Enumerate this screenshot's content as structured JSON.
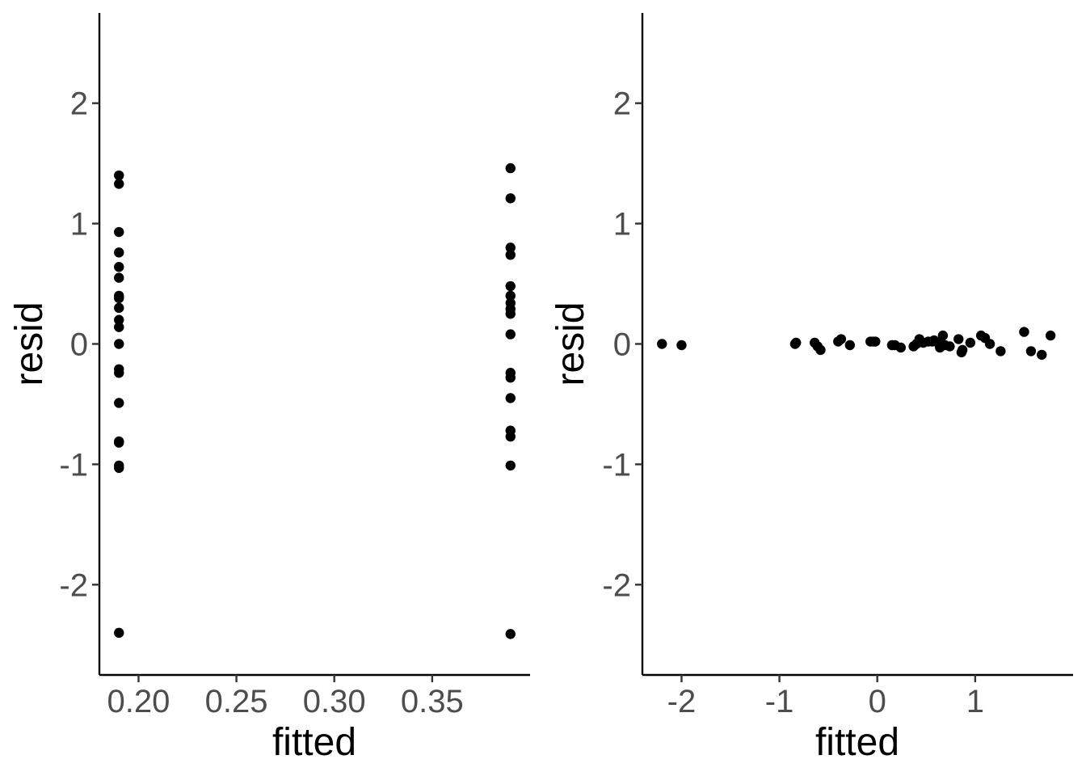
{
  "chart_data": [
    {
      "type": "scatter",
      "title": "",
      "xlabel": "fitted",
      "ylabel": "resid",
      "xlim": [
        0.18,
        0.4
      ],
      "ylim": [
        -2.75,
        2.75
      ],
      "grid": false,
      "x_ticks": [
        0.2,
        0.25,
        0.3,
        0.35
      ],
      "x_tick_labels": [
        "0.20",
        "0.25",
        "0.30",
        "0.35"
      ],
      "y_ticks": [
        -2,
        -1,
        0,
        1,
        2
      ],
      "y_tick_labels": [
        "-2",
        "-1",
        "0",
        "1",
        "2"
      ],
      "points": [
        {
          "x": 0.19,
          "y": 1.4
        },
        {
          "x": 0.19,
          "y": 1.33
        },
        {
          "x": 0.19,
          "y": 0.93
        },
        {
          "x": 0.19,
          "y": 0.76
        },
        {
          "x": 0.19,
          "y": 0.64
        },
        {
          "x": 0.19,
          "y": 0.55
        },
        {
          "x": 0.19,
          "y": 0.4
        },
        {
          "x": 0.19,
          "y": 0.38
        },
        {
          "x": 0.19,
          "y": 0.3
        },
        {
          "x": 0.19,
          "y": 0.2
        },
        {
          "x": 0.19,
          "y": 0.14
        },
        {
          "x": 0.19,
          "y": 0.0
        },
        {
          "x": 0.19,
          "y": -0.21
        },
        {
          "x": 0.19,
          "y": -0.24
        },
        {
          "x": 0.19,
          "y": -0.49
        },
        {
          "x": 0.19,
          "y": -0.81
        },
        {
          "x": 0.19,
          "y": -0.82
        },
        {
          "x": 0.19,
          "y": -1.01
        },
        {
          "x": 0.19,
          "y": -1.03
        },
        {
          "x": 0.19,
          "y": -2.4
        },
        {
          "x": 0.39,
          "y": 1.46
        },
        {
          "x": 0.39,
          "y": 1.21
        },
        {
          "x": 0.39,
          "y": 0.8
        },
        {
          "x": 0.39,
          "y": 0.74
        },
        {
          "x": 0.39,
          "y": 0.48
        },
        {
          "x": 0.39,
          "y": 0.4
        },
        {
          "x": 0.39,
          "y": 0.34
        },
        {
          "x": 0.39,
          "y": 0.29
        },
        {
          "x": 0.39,
          "y": 0.25
        },
        {
          "x": 0.39,
          "y": 0.08
        },
        {
          "x": 0.39,
          "y": -0.24
        },
        {
          "x": 0.39,
          "y": -0.28
        },
        {
          "x": 0.39,
          "y": -0.45
        },
        {
          "x": 0.39,
          "y": -0.72
        },
        {
          "x": 0.39,
          "y": -0.77
        },
        {
          "x": 0.39,
          "y": -1.01
        },
        {
          "x": 0.39,
          "y": -2.41
        }
      ]
    },
    {
      "type": "scatter",
      "title": "",
      "xlabel": "fitted",
      "ylabel": "resid",
      "xlim": [
        -2.4,
        2.0
      ],
      "ylim": [
        -2.75,
        2.75
      ],
      "grid": false,
      "x_ticks": [
        -2,
        -1,
        0,
        1
      ],
      "x_tick_labels": [
        "-2",
        "-1",
        "0",
        "1"
      ],
      "y_ticks": [
        -2,
        -1,
        0,
        1,
        2
      ],
      "y_tick_labels": [
        "-2",
        "-1",
        "0",
        "1",
        "2"
      ],
      "points": [
        {
          "x": -2.2,
          "y": 0.0
        },
        {
          "x": -2.0,
          "y": -0.01
        },
        {
          "x": -0.84,
          "y": 0.0
        },
        {
          "x": -0.83,
          "y": 0.01
        },
        {
          "x": -0.64,
          "y": 0.01
        },
        {
          "x": -0.61,
          "y": -0.02
        },
        {
          "x": -0.58,
          "y": -0.05
        },
        {
          "x": -0.4,
          "y": 0.02
        },
        {
          "x": -0.37,
          "y": 0.04
        },
        {
          "x": -0.28,
          "y": -0.01
        },
        {
          "x": -0.07,
          "y": 0.02
        },
        {
          "x": -0.04,
          "y": 0.02
        },
        {
          "x": -0.02,
          "y": 0.02
        },
        {
          "x": 0.15,
          "y": -0.01
        },
        {
          "x": 0.18,
          "y": -0.01
        },
        {
          "x": 0.24,
          "y": -0.03
        },
        {
          "x": 0.37,
          "y": -0.02
        },
        {
          "x": 0.4,
          "y": 0.0
        },
        {
          "x": 0.43,
          "y": 0.04
        },
        {
          "x": 0.47,
          "y": 0.01
        },
        {
          "x": 0.52,
          "y": 0.02
        },
        {
          "x": 0.56,
          "y": 0.02
        },
        {
          "x": 0.58,
          "y": 0.03
        },
        {
          "x": 0.62,
          "y": 0.01
        },
        {
          "x": 0.64,
          "y": -0.03
        },
        {
          "x": 0.67,
          "y": 0.07
        },
        {
          "x": 0.69,
          "y": -0.01
        },
        {
          "x": 0.74,
          "y": -0.02
        },
        {
          "x": 0.83,
          "y": 0.04
        },
        {
          "x": 0.86,
          "y": -0.07
        },
        {
          "x": 0.87,
          "y": -0.05
        },
        {
          "x": 0.95,
          "y": 0.01
        },
        {
          "x": 1.06,
          "y": 0.07
        },
        {
          "x": 1.1,
          "y": 0.05
        },
        {
          "x": 1.15,
          "y": 0.0
        },
        {
          "x": 1.26,
          "y": -0.06
        },
        {
          "x": 1.5,
          "y": 0.1
        },
        {
          "x": 1.57,
          "y": -0.06
        },
        {
          "x": 1.68,
          "y": -0.09
        },
        {
          "x": 1.77,
          "y": 0.07
        }
      ]
    }
  ]
}
